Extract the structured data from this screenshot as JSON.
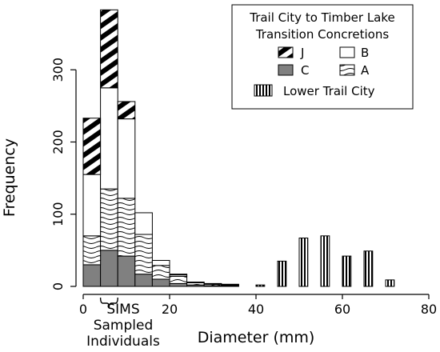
{
  "chart_data": {
    "type": "bar",
    "stacked": true,
    "xlabel": "Diameter (mm)",
    "ylabel": "Frequency",
    "xlim": [
      0,
      80
    ],
    "ylim": [
      0,
      390
    ],
    "x_ticks": [
      0,
      20,
      40,
      60,
      80
    ],
    "y_ticks": [
      0,
      100,
      200,
      300
    ],
    "annotation": {
      "lines": [
        "SIMS",
        "Sampled",
        "Individuals"
      ],
      "x_range": [
        4,
        8
      ]
    },
    "legend": {
      "title_lines": [
        "Trail City to Timber Lake",
        "Transition Concretions"
      ],
      "entries": [
        {
          "key": "J",
          "label": "J"
        },
        {
          "key": "B",
          "label": "B"
        },
        {
          "key": "C",
          "label": "C"
        },
        {
          "key": "A",
          "label": "A"
        },
        {
          "key": "LTC",
          "label": "Lower Trail City"
        }
      ]
    },
    "series": [
      {
        "key": "C",
        "name": "C",
        "fill": "#808080",
        "pattern": "solid-gray",
        "bars": [
          [
            0,
            4,
            30
          ],
          [
            4,
            8,
            50
          ],
          [
            8,
            12,
            42
          ],
          [
            12,
            16,
            17
          ],
          [
            16,
            20,
            10
          ],
          [
            20,
            24,
            4
          ],
          [
            24,
            28,
            2
          ],
          [
            28,
            32,
            1
          ],
          [
            32,
            36,
            1
          ]
        ]
      },
      {
        "key": "A",
        "name": "A",
        "fill": "#ffffff",
        "pattern": "wavy",
        "bars": [
          [
            0,
            4,
            40
          ],
          [
            4,
            8,
            85
          ],
          [
            8,
            12,
            80
          ],
          [
            12,
            16,
            55
          ],
          [
            16,
            20,
            19
          ],
          [
            20,
            24,
            10
          ],
          [
            24,
            28,
            3
          ],
          [
            28,
            32,
            2
          ],
          [
            32,
            36,
            1
          ]
        ]
      },
      {
        "key": "B",
        "name": "B",
        "fill": "#ffffff",
        "pattern": "plain",
        "bars": [
          [
            0,
            4,
            85
          ],
          [
            4,
            8,
            140
          ],
          [
            8,
            12,
            110
          ],
          [
            12,
            16,
            30
          ],
          [
            16,
            20,
            7
          ],
          [
            20,
            24,
            2
          ],
          [
            24,
            28,
            1
          ],
          [
            28,
            32,
            1
          ],
          [
            32,
            36,
            1
          ]
        ]
      },
      {
        "key": "J",
        "name": "J",
        "fill": "#000000",
        "pattern": "thick-diagonal",
        "bars": [
          [
            0,
            4,
            78
          ],
          [
            4,
            8,
            108
          ],
          [
            8,
            12,
            24
          ],
          [
            12,
            16,
            0
          ],
          [
            16,
            20,
            0
          ],
          [
            20,
            24,
            1
          ],
          [
            24,
            28,
            0
          ],
          [
            28,
            32,
            0
          ],
          [
            32,
            36,
            0
          ]
        ]
      },
      {
        "key": "LTC",
        "name": "Lower Trail City",
        "fill": "#ffffff",
        "pattern": "vertical-stripes",
        "bars": [
          [
            40,
            42,
            2
          ],
          [
            45,
            47,
            35
          ],
          [
            50,
            52,
            67
          ],
          [
            55,
            57,
            70
          ],
          [
            60,
            62,
            42
          ],
          [
            65,
            67,
            49
          ],
          [
            70,
            72,
            9
          ]
        ]
      }
    ]
  }
}
